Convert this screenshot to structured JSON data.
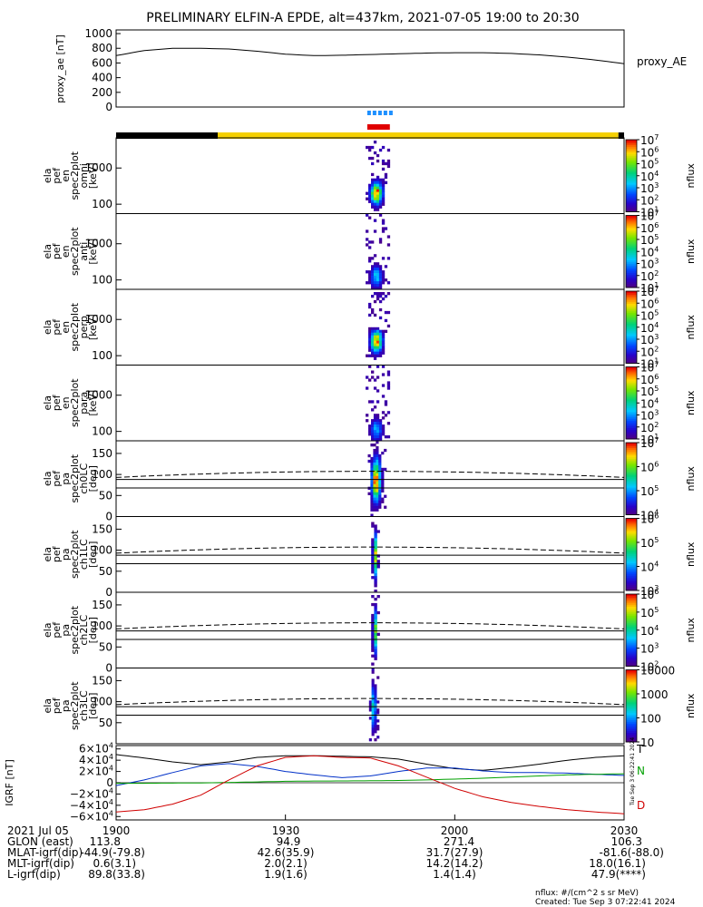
{
  "title": "PRELIMINARY ELFIN-A EPDE, alt=437km, 2021-07-05 19:00 to 20:30",
  "colors": {
    "black": "#000000",
    "yellow": "#f5d000",
    "blue_bar": "#1e90ff",
    "red_bar": "#e00000",
    "b_x": "#000000",
    "b_y": "#0030c8",
    "b_z": "#00a000",
    "b_total": "#d00000"
  },
  "chart_data": [
    {
      "type": "line",
      "panel": "proxy_ae",
      "ylabel": "proxy_ae [nT]",
      "legend": "proxy_AE",
      "yticks": [
        "1000",
        "800",
        "600",
        "400",
        "200",
        "0"
      ],
      "ylim": [
        0,
        1050
      ],
      "x_minutes": [
        0,
        5,
        10,
        15,
        20,
        25,
        30,
        35,
        40,
        45,
        50,
        55,
        60,
        65,
        70,
        75,
        80,
        85,
        90
      ],
      "values": [
        700,
        770,
        800,
        800,
        790,
        760,
        720,
        700,
        705,
        715,
        725,
        735,
        740,
        740,
        730,
        710,
        680,
        640,
        590
      ]
    },
    {
      "type": "bar",
      "panel": "science_zone_bar",
      "segments": [
        {
          "start_min": 0,
          "end_min": 18,
          "color": "#000000"
        },
        {
          "start_min": 18,
          "end_min": 89,
          "color": "#f5d000"
        },
        {
          "start_min": 89,
          "end_min": 90,
          "color": "#000000"
        }
      ],
      "markers": [
        {
          "start_min": 44.5,
          "end_min": 48.5,
          "color": "#1e90ff",
          "style": "dashed"
        },
        {
          "start_min": 44.5,
          "end_min": 48.5,
          "color": "#e00000",
          "style": "solid"
        }
      ]
    },
    {
      "type": "heatmap",
      "panel": "ela_pef_en_spec2plot_omni",
      "ylabel": [
        "ela",
        "pef",
        "en",
        "spec2plot",
        "omni",
        "[keV]"
      ],
      "yticks": [
        "1000",
        "100"
      ],
      "ylim_kev": [
        55,
        6800
      ],
      "yscale": "log",
      "colorbar": {
        "label": "nflux",
        "ticks": [
          "10^7",
          "10^6",
          "10^5",
          "10^4",
          "10^3",
          "10^2",
          "10^1"
        ]
      },
      "x_range_min": [
        44.2,
        48.5
      ],
      "peak_energy_kev": 200,
      "intensity": 1.0
    },
    {
      "type": "heatmap",
      "panel": "ela_pef_en_spec2plot_anti",
      "ylabel": [
        "ela",
        "pef",
        "en",
        "spec2plot",
        "anti",
        "[keV]"
      ],
      "yticks": [
        "1000",
        "100"
      ],
      "ylim_kev": [
        55,
        6800
      ],
      "yscale": "log",
      "colorbar": {
        "label": "nflux",
        "ticks": [
          "10^7",
          "10^6",
          "10^5",
          "10^4",
          "10^3",
          "10^2",
          "10^1"
        ]
      },
      "x_range_min": [
        44.2,
        48.5
      ],
      "peak_energy_kev": 120,
      "intensity": 0.45
    },
    {
      "type": "heatmap",
      "panel": "ela_pef_en_spec2plot_perp",
      "ylabel": [
        "ela",
        "pef",
        "en",
        "spec2plot",
        "perp",
        "[keV]"
      ],
      "yticks": [
        "1000",
        "100"
      ],
      "ylim_kev": [
        55,
        6800
      ],
      "yscale": "log",
      "colorbar": {
        "label": "nflux",
        "ticks": [
          "10^7",
          "10^6",
          "10^5",
          "10^4",
          "10^3",
          "10^2",
          "10^1"
        ]
      },
      "x_range_min": [
        44.2,
        48.5
      ],
      "peak_energy_kev": 250,
      "intensity": 0.95
    },
    {
      "type": "heatmap",
      "panel": "ela_pef_en_spec2plot_para",
      "ylabel": [
        "ela",
        "pef",
        "en",
        "spec2plot",
        "para",
        "[keV]"
      ],
      "yticks": [
        "1000",
        "100"
      ],
      "ylim_kev": [
        55,
        6800
      ],
      "yscale": "log",
      "colorbar": {
        "label": "nflux",
        "ticks": [
          "10^7",
          "10^6",
          "10^5",
          "10^4",
          "10^3",
          "10^2",
          "10^1"
        ]
      },
      "x_range_min": [
        44.2,
        48.5
      ],
      "peak_energy_kev": 110,
      "intensity": 0.4
    },
    {
      "type": "heatmap",
      "panel": "ela_pef_pa_spec2plot_ch0LC",
      "ylabel": [
        "ela",
        "pef",
        "pa",
        "spec2plot",
        "ch0LC",
        "[deg]"
      ],
      "yticks": [
        "150",
        "100",
        "50",
        "0"
      ],
      "ylim_deg": [
        0,
        180
      ],
      "colorbar": {
        "label": "nflux",
        "ticks": [
          "10^7",
          "10^6",
          "10^5",
          "10^4"
        ]
      },
      "x_range_min": [
        44.6,
        47.9
      ],
      "intensity": 1.0,
      "loss_cone_deg": {
        "start": 68,
        "end": 88
      },
      "anti_loss_cone_deg": {
        "start": 93,
        "mid": 110,
        "end": 93
      }
    },
    {
      "type": "heatmap",
      "panel": "ela_pef_pa_spec2plot_ch1LC",
      "ylabel": [
        "ela",
        "pef",
        "pa",
        "spec2plot",
        "ch1LC",
        "[deg]"
      ],
      "yticks": [
        "150",
        "100",
        "50",
        "0"
      ],
      "ylim_deg": [
        0,
        180
      ],
      "colorbar": {
        "label": "nflux",
        "ticks": [
          "10^6",
          "10^5",
          "10^4",
          "10^3"
        ]
      },
      "x_range_min": [
        45.2,
        46.7
      ],
      "intensity": 0.8,
      "loss_cone_deg": {
        "start": 68,
        "end": 88
      },
      "anti_loss_cone_deg": {
        "start": 93,
        "mid": 110,
        "end": 93
      }
    },
    {
      "type": "heatmap",
      "panel": "ela_pef_pa_spec2plot_ch2LC",
      "ylabel": [
        "ela",
        "pef",
        "pa",
        "spec2plot",
        "ch2LC",
        "[deg]"
      ],
      "yticks": [
        "150",
        "100",
        "50",
        "0"
      ],
      "ylim_deg": [
        0,
        180
      ],
      "colorbar": {
        "label": "nflux",
        "ticks": [
          "10^6",
          "10^5",
          "10^4",
          "10^3",
          "10^2"
        ]
      },
      "x_range_min": [
        45.2,
        46.7
      ],
      "intensity": 0.7,
      "loss_cone_deg": {
        "start": 68,
        "end": 88
      },
      "anti_loss_cone_deg": {
        "start": 93,
        "mid": 110,
        "end": 93
      }
    },
    {
      "type": "heatmap",
      "panel": "ela_pef_pa_spec2plot_ch3LC",
      "ylabel": [
        "ela",
        "pef",
        "pa",
        "spec2plot",
        "ch3LC",
        "[deg]"
      ],
      "yticks": [
        "150",
        "100",
        "50"
      ],
      "ylim_deg": [
        0,
        180
      ],
      "colorbar": {
        "label": "nflux",
        "ticks": [
          "10000",
          "1000",
          "100",
          "10"
        ]
      },
      "x_range_min": [
        44.8,
        46.6
      ],
      "intensity": 0.55,
      "loss_cone_deg": {
        "start": 68,
        "end": 88
      },
      "anti_loss_cone_deg": {
        "start": 93,
        "mid": 110,
        "end": 93
      }
    },
    {
      "type": "line",
      "panel": "igrf",
      "ylabel": "IGRF [nT]",
      "yticks": [
        "6×10^4",
        "4×10^4",
        "2×10^4",
        "0",
        "−2×10^4",
        "−4×10^4",
        "−6×10^4"
      ],
      "ylim": [
        -66000,
        66000
      ],
      "legend": [
        "T",
        "N",
        "D"
      ],
      "x_minutes": [
        0,
        5,
        10,
        15,
        20,
        25,
        30,
        35,
        40,
        45,
        50,
        55,
        60,
        65,
        70,
        75,
        80,
        85,
        90
      ],
      "series": [
        {
          "name": "T",
          "values": [
            50000,
            44000,
            37000,
            32000,
            37000,
            45000,
            48000,
            48000,
            47000,
            46000,
            42000,
            33000,
            25000,
            22000,
            27000,
            33000,
            40000,
            45000,
            48000
          ]
        },
        {
          "name": "N",
          "values": [
            -5000,
            5000,
            18000,
            30000,
            34000,
            29000,
            20000,
            14000,
            9000,
            12000,
            20000,
            26000,
            26000,
            21000,
            18000,
            18000,
            17000,
            15000,
            13000
          ]
        },
        {
          "name": "Z",
          "values": [
            -1000,
            -900,
            -600,
            -300,
            500,
            1500,
            2500,
            3000,
            3200,
            3500,
            4000,
            5000,
            6500,
            8000,
            10000,
            12000,
            14000,
            15000,
            16000
          ]
        },
        {
          "name": "D",
          "values": [
            -52000,
            -48000,
            -38000,
            -22000,
            5000,
            30000,
            45000,
            48000,
            45000,
            44000,
            30000,
            10000,
            -10000,
            -25000,
            -35000,
            -42000,
            -48000,
            -52000,
            -55000
          ]
        }
      ]
    }
  ],
  "xaxis": {
    "ticks": [
      "1900",
      "1930",
      "2000",
      "2030"
    ]
  },
  "ephemeris": {
    "rows": [
      {
        "label": "2021 Jul 05",
        "values": [
          "1900",
          "1930",
          "2000",
          "2030"
        ]
      },
      {
        "label": "GLON (east)",
        "values": [
          "113.8",
          "94.9",
          "271.4",
          "106.3"
        ]
      },
      {
        "label": "MLAT-igrf(dip)",
        "values": [
          "-44.9(-79.8)",
          "42.6(35.9)",
          "31.7(27.9)",
          "-81.6(-88.0)"
        ]
      },
      {
        "label": "MLT-igrf(dip)",
        "values": [
          "0.6(3.1)",
          "2.0(2.1)",
          "14.2(14.2)",
          "18.0(16.1)"
        ]
      },
      {
        "label": "L-igrf(dip)",
        "values": [
          "89.8(33.8)",
          "1.9(1.6)",
          "1.4(1.4)",
          "47.9(****)"
        ]
      }
    ]
  },
  "footer": {
    "units": "nflux: #/(cm^2 s sr MeV)",
    "created": "Created: Tue Sep  3 07:22:41 2024"
  },
  "side_stamp": "Tue Sep  3 06:22:41 2024"
}
